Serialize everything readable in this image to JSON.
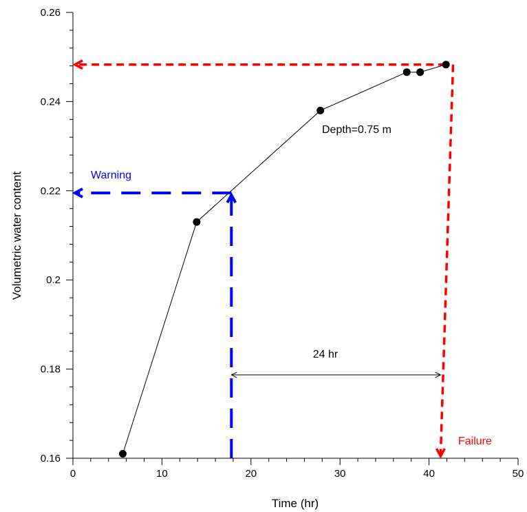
{
  "chart_data": {
    "type": "line",
    "xlabel": "Time (hr)",
    "ylabel": "Volumetric water content",
    "xlim": [
      0,
      50
    ],
    "ylim": [
      0.16,
      0.26
    ],
    "x_ticks": [
      0,
      10,
      20,
      30,
      40,
      50
    ],
    "x_tick_labels": [
      "0",
      "10",
      "20",
      "30",
      "40",
      "50"
    ],
    "y_ticks": [
      0.16,
      0.18,
      0.2,
      0.22,
      0.24,
      0.26
    ],
    "y_tick_labels": [
      "0.16",
      "0.18",
      "0.2",
      "0.22",
      "0.24",
      "0.26"
    ],
    "grid": false,
    "series": [
      {
        "x": [
          5.6,
          13.9,
          27.8,
          37.5,
          39.0,
          41.9
        ],
        "y": [
          0.161,
          0.213,
          0.238,
          0.2466,
          0.2466,
          0.2483
        ]
      }
    ],
    "annotations": {
      "depth_label": "Depth=0.75 m",
      "warning_label": "Warning",
      "failure_label": "Failure",
      "interval_label": "24 hr",
      "warning_time": 17.8,
      "warning_value": 0.2195,
      "failure_time": 41.9,
      "failure_value": 0.2483,
      "interval_start": 17.8,
      "interval_end": 41.3,
      "interval_value": 0.1787,
      "warning_color": "#0000ff",
      "failure_color": "#ff0000"
    }
  }
}
